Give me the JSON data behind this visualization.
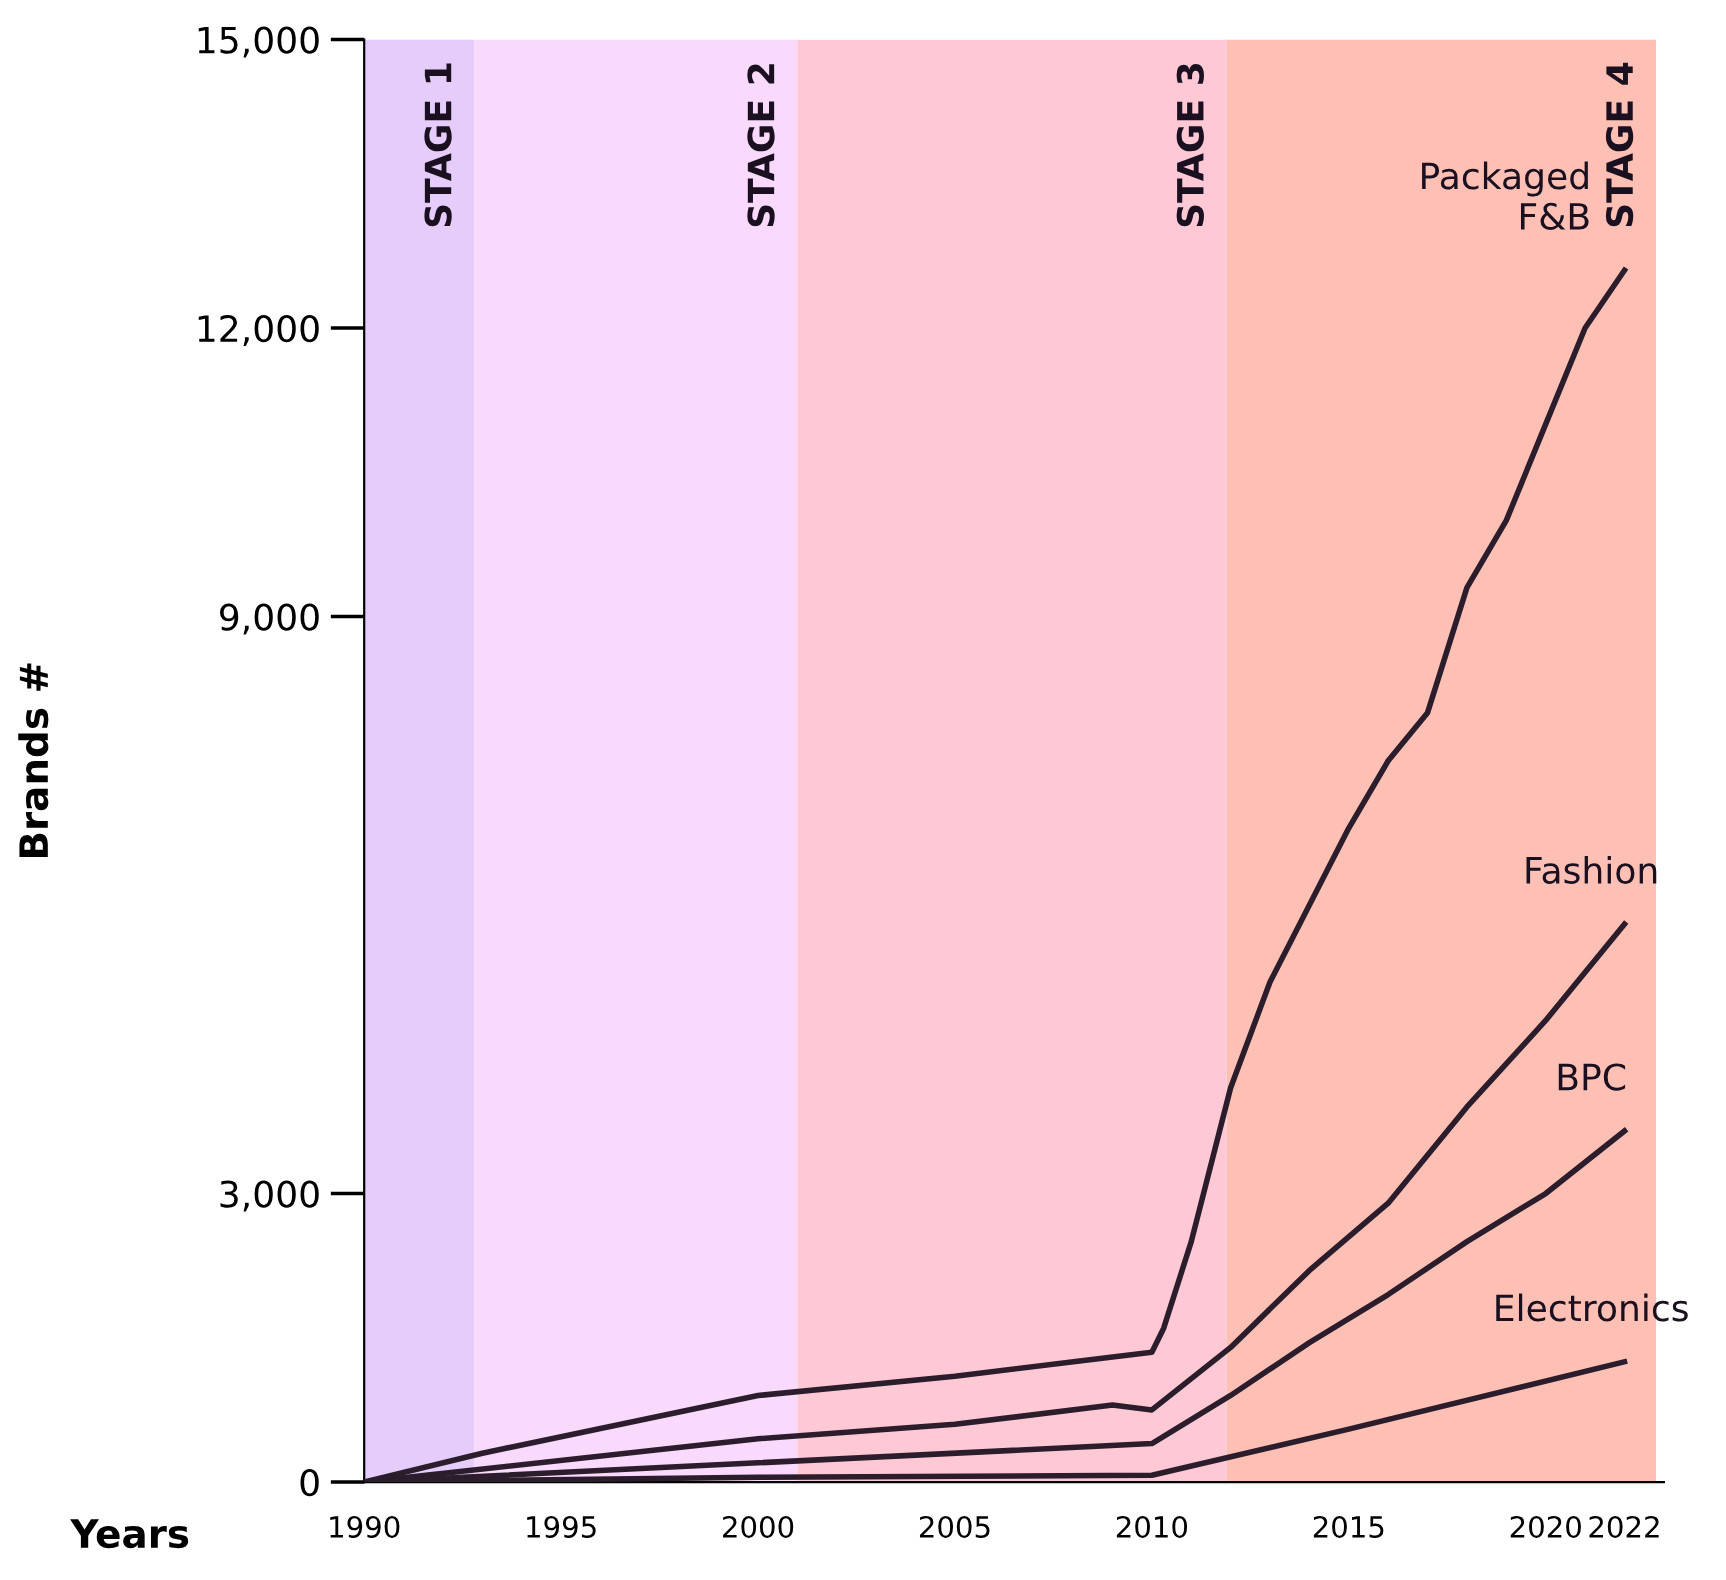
{
  "chart_data": {
    "type": "line",
    "xlabel": "Years",
    "ylabel": "Brands #",
    "xlim": [
      1990,
      2023
    ],
    "xticks": [
      1990,
      1995,
      2000,
      2005,
      2010,
      2015,
      2020,
      2022
    ],
    "ylim": [
      0,
      15000
    ],
    "yticks": [
      0,
      {
        "value": 3000,
        "label": "3,000"
      },
      {
        "value": 9000,
        "label": "9,000"
      },
      {
        "value": 12000,
        "label": "12,000"
      },
      {
        "value": 15000,
        "label": "15,000"
      }
    ],
    "grid": false,
    "legend": false,
    "marker": "none",
    "line_style": "solid",
    "bands": [
      {
        "axis": "x",
        "from": 1990,
        "to": 1992.8,
        "label": "STAGE 1",
        "color": "#e5ccfb"
      },
      {
        "axis": "x",
        "from": 1992.8,
        "to": 2001.0,
        "label": "STAGE 2",
        "color": "#f9d9fc"
      },
      {
        "axis": "x",
        "from": 2001.0,
        "to": 2011.9,
        "label": "STAGE 3",
        "color": "#fec9d5"
      },
      {
        "axis": "x",
        "from": 2011.9,
        "to": 2022.8,
        "label": "STAGE 4",
        "color": "#fec0b4"
      }
    ],
    "series": [
      {
        "name": "Packaged\nF&B",
        "color": "#2b1d2b",
        "x": [
          1990,
          1993,
          2000,
          2005,
          2009,
          2010,
          2010.3,
          2011,
          2012,
          2013,
          2014,
          2015,
          2016,
          2017,
          2018,
          2019,
          2020,
          2021,
          2022
        ],
        "values": [
          0,
          300,
          900,
          1100,
          1300,
          1350,
          1600,
          2500,
          4100,
          5200,
          6000,
          6800,
          7500,
          8000,
          9300,
          10000,
          11000,
          12000,
          12600
        ]
      },
      {
        "name": "Fashion",
        "color": "#2b1d2b",
        "x": [
          1990,
          2000,
          2005,
          2009,
          2010,
          2012,
          2014,
          2016,
          2018,
          2020,
          2022
        ],
        "values": [
          0,
          450,
          600,
          800,
          750,
          1400,
          2200,
          2900,
          3900,
          4800,
          5800
        ]
      },
      {
        "name": "BPC",
        "color": "#2b1d2b",
        "x": [
          1990,
          2000,
          2010,
          2012,
          2014,
          2016,
          2018,
          2020,
          2022
        ],
        "values": [
          0,
          200,
          400,
          900,
          1450,
          1950,
          2500,
          3000,
          3650
        ]
      },
      {
        "name": "Electronics",
        "color": "#2b1d2b",
        "x": [
          1990,
          2000,
          2010,
          2015,
          2022
        ],
        "values": [
          0,
          50,
          70,
          550,
          1250
        ]
      }
    ]
  }
}
